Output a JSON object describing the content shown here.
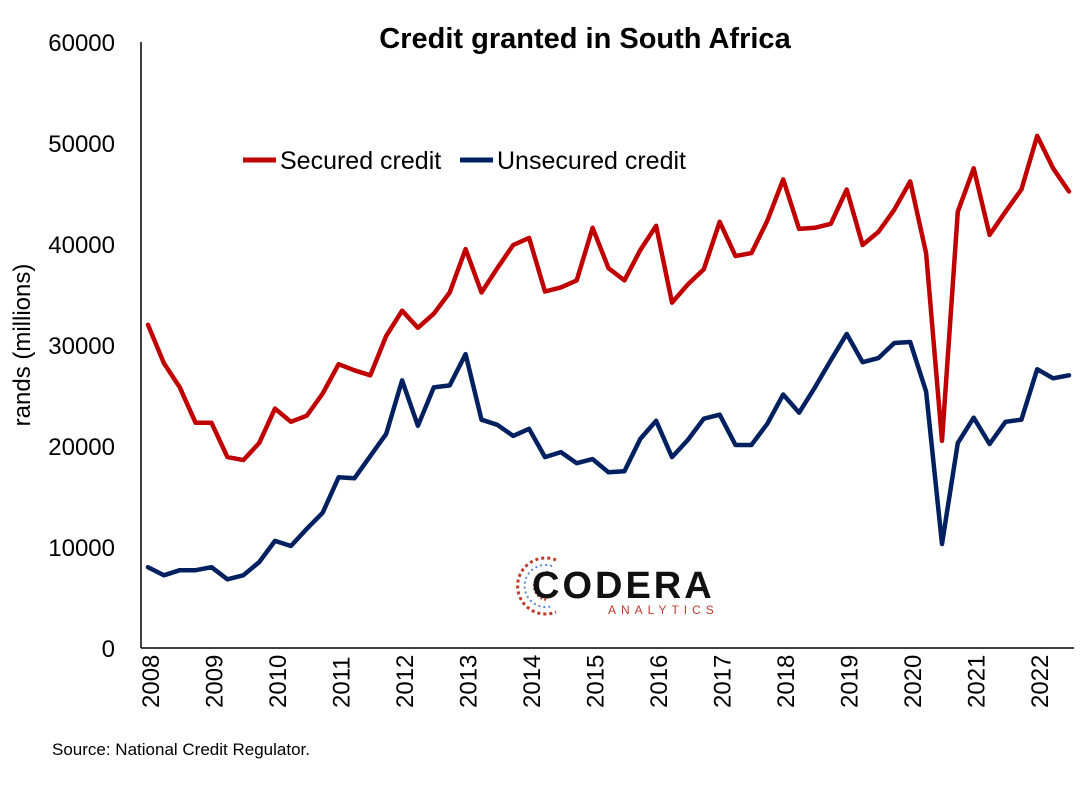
{
  "chart_data": {
    "type": "line",
    "title": "Credit granted in South Africa",
    "ylabel": "rands (millions)",
    "xlabel": "",
    "ylim": [
      0,
      60000
    ],
    "yticks": [
      "0",
      "10000",
      "20000",
      "30000",
      "40000",
      "50000",
      "60000"
    ],
    "xtick_labels": [
      "2008",
      "2009",
      "2010",
      "2011",
      "2012",
      "2013",
      "2014",
      "2015",
      "2016",
      "2017",
      "2018",
      "2019",
      "2020",
      "2021",
      "2022"
    ],
    "x_start_year": 2008,
    "legend_position": "top-left",
    "grid": false,
    "series": [
      {
        "name": "Secured credit",
        "color": "#c00000",
        "values": [
          32000,
          28200,
          25800,
          22300,
          22300,
          18900,
          18600,
          20300,
          23700,
          22400,
          23000,
          25200,
          28100,
          27500,
          27000,
          30900,
          33400,
          31700,
          33100,
          35200,
          39500,
          35200,
          37600,
          39900,
          40600,
          35300,
          35700,
          36400,
          41600,
          37600,
          36400,
          39400,
          41800,
          34200,
          36000,
          37500,
          42200,
          38800,
          39100,
          42300,
          46400,
          41500,
          41600,
          42000,
          45400,
          39900,
          41200,
          43400,
          46200,
          39100,
          20500,
          43200,
          47500,
          40900,
          43200,
          45400,
          50700,
          47500,
          45200
        ]
      },
      {
        "name": "Unsecured credit",
        "color": "#002060",
        "values": [
          8000,
          7200,
          7700,
          7700,
          8000,
          6800,
          7200,
          8500,
          10600,
          10100,
          11800,
          13400,
          16900,
          16800,
          19000,
          21200,
          26500,
          22000,
          25800,
          26000,
          29100,
          22600,
          22100,
          21000,
          21700,
          18900,
          19400,
          18300,
          18700,
          17400,
          17500,
          20700,
          22500,
          18900,
          20600,
          22700,
          23100,
          20100,
          20100,
          22200,
          25100,
          23300,
          25800,
          28500,
          31100,
          28300,
          28700,
          30200,
          30300,
          25400,
          10300,
          20300,
          22800,
          20200,
          22400,
          22600,
          27600,
          26700,
          27000
        ]
      }
    ]
  },
  "logo": {
    "word": "CODERA",
    "sub": "ANALYTICS",
    "accent_color": "#c0392b",
    "secondary_color": "#5b8bd0"
  },
  "source": "Source: National Credit Regulator."
}
